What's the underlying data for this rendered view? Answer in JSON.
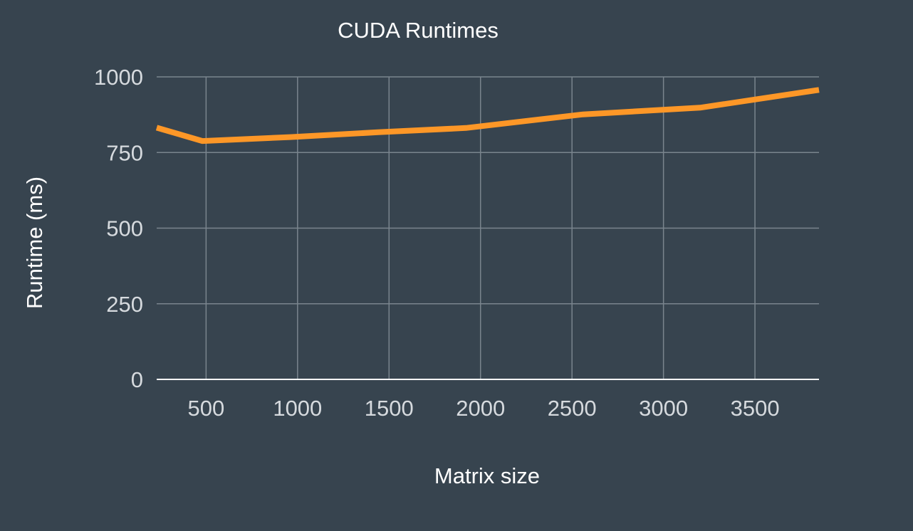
{
  "chart_data": {
    "type": "line",
    "title": "CUDA Runtimes",
    "xlabel": "Matrix size",
    "ylabel": "Runtime (ms)",
    "xlim": [
      230,
      3850
    ],
    "ylim": [
      0,
      1000
    ],
    "x_ticks": [
      500,
      1000,
      1500,
      2000,
      2500,
      3000,
      3500
    ],
    "y_ticks": [
      0,
      250,
      500,
      750,
      1000
    ],
    "grid": true,
    "series": [
      {
        "color": "#fd9727",
        "x": [
          230,
          480,
          960,
          1440,
          1920,
          2560,
          3200,
          3850
        ],
        "y": [
          832,
          788,
          801,
          817,
          831,
          876,
          898,
          957
        ]
      }
    ]
  }
}
